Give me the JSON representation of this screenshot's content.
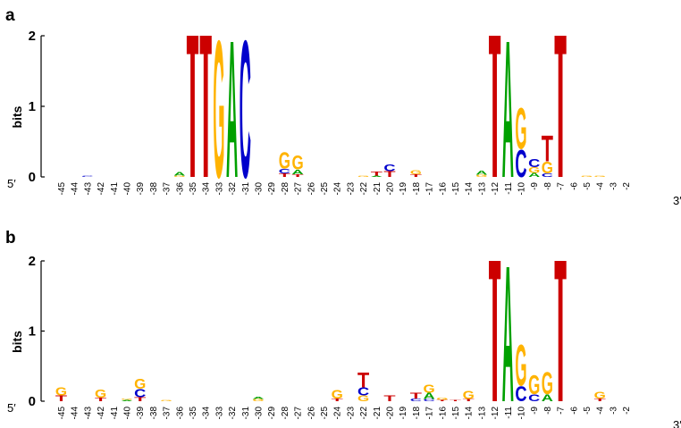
{
  "colors": {
    "A": "#00a000",
    "C": "#0000cc",
    "G": "#ffb300",
    "T": "#cc0000"
  },
  "panels": [
    {
      "letter": "a",
      "y_label": "bits",
      "y_ticks": [
        "0",
        "1",
        "2"
      ],
      "five_prime": "5′",
      "three_prime": "3′",
      "positions": [
        "-45",
        "-44",
        "-43",
        "-42",
        "-41",
        "-40",
        "-39",
        "-38",
        "-37",
        "-36",
        "-35",
        "-34",
        "-33",
        "-32",
        "-31",
        "-30",
        "-29",
        "-28",
        "-27",
        "-26",
        "-25",
        "-24",
        "-23",
        "-22",
        "-21",
        "-20",
        "-19",
        "-18",
        "-17",
        "-16",
        "-15",
        "-14",
        "-13",
        "-12",
        "-11",
        "-10",
        "-9",
        "-8",
        "-7",
        "-6",
        "-5",
        "-4",
        "-3",
        "-2"
      ]
    },
    {
      "letter": "b",
      "y_label": "bits",
      "y_ticks": [
        "0",
        "1",
        "2"
      ],
      "five_prime": "5′",
      "three_prime": "3′",
      "positions": [
        "-45",
        "-44",
        "-43",
        "-42",
        "-41",
        "-40",
        "-39",
        "-38",
        "-37",
        "-36",
        "-35",
        "-34",
        "-33",
        "-32",
        "-31",
        "-30",
        "-29",
        "-28",
        "-27",
        "-26",
        "-25",
        "-24",
        "-23",
        "-22",
        "-21",
        "-20",
        "-19",
        "-18",
        "-17",
        "-16",
        "-15",
        "-14",
        "-13",
        "-12",
        "-11",
        "-10",
        "-9",
        "-8",
        "-7",
        "-6",
        "-5",
        "-4",
        "-3",
        "-2"
      ]
    }
  ],
  "chart_data": [
    {
      "type": "sequence-logo",
      "panel": "a",
      "ylabel": "bits",
      "ylim": [
        0,
        2
      ],
      "columns": [
        {
          "pos": "-43",
          "stack": [
            [
              "C",
              0.02
            ]
          ]
        },
        {
          "pos": "-36",
          "stack": [
            [
              "G",
              0.02
            ],
            [
              "A",
              0.05
            ]
          ]
        },
        {
          "pos": "-35",
          "stack": [
            [
              "T",
              2.0
            ]
          ]
        },
        {
          "pos": "-34",
          "stack": [
            [
              "T",
              2.0
            ]
          ]
        },
        {
          "pos": "-33",
          "stack": [
            [
              "G",
              2.0
            ]
          ]
        },
        {
          "pos": "-32",
          "stack": [
            [
              "A",
              2.0
            ]
          ]
        },
        {
          "pos": "-31",
          "stack": [
            [
              "C",
              2.0
            ]
          ]
        },
        {
          "pos": "-28",
          "stack": [
            [
              "T",
              0.05
            ],
            [
              "C",
              0.07
            ],
            [
              "G",
              0.24
            ]
          ]
        },
        {
          "pos": "-27",
          "stack": [
            [
              "T",
              0.04
            ],
            [
              "A",
              0.07
            ],
            [
              "G",
              0.2
            ]
          ]
        },
        {
          "pos": "-22",
          "stack": [
            [
              "G",
              0.02
            ]
          ]
        },
        {
          "pos": "-21",
          "stack": [
            [
              "A",
              0.02
            ],
            [
              "T",
              0.06
            ]
          ]
        },
        {
          "pos": "-20",
          "stack": [
            [
              "T",
              0.08
            ],
            [
              "C",
              0.1
            ]
          ]
        },
        {
          "pos": "-18",
          "stack": [
            [
              "T",
              0.04
            ],
            [
              "G",
              0.06
            ]
          ]
        },
        {
          "pos": "-13",
          "stack": [
            [
              "G",
              0.03
            ],
            [
              "A",
              0.06
            ]
          ]
        },
        {
          "pos": "-12",
          "stack": [
            [
              "T",
              2.0
            ]
          ]
        },
        {
          "pos": "-11",
          "stack": [
            [
              "A",
              2.0
            ]
          ]
        },
        {
          "pos": "-10",
          "stack": [
            [
              "C",
              0.4
            ],
            [
              "G",
              0.6
            ]
          ]
        },
        {
          "pos": "-9",
          "stack": [
            [
              "A",
              0.06
            ],
            [
              "G",
              0.08
            ],
            [
              "C",
              0.12
            ]
          ]
        },
        {
          "pos": "-8",
          "stack": [
            [
              "C",
              0.05
            ],
            [
              "G",
              0.17
            ],
            [
              "T",
              0.38
            ]
          ]
        },
        {
          "pos": "-7",
          "stack": [
            [
              "T",
              2.0
            ]
          ]
        },
        {
          "pos": "-5",
          "stack": [
            [
              "G",
              0.02
            ]
          ]
        },
        {
          "pos": "-4",
          "stack": [
            [
              "G",
              0.02
            ]
          ]
        }
      ]
    },
    {
      "type": "sequence-logo",
      "panel": "b",
      "ylabel": "bits",
      "ylim": [
        0,
        2
      ],
      "columns": [
        {
          "pos": "-45",
          "stack": [
            [
              "T",
              0.08
            ],
            [
              "G",
              0.12
            ]
          ]
        },
        {
          "pos": "-42",
          "stack": [
            [
              "T",
              0.05
            ],
            [
              "G",
              0.12
            ]
          ]
        },
        {
          "pos": "-40",
          "stack": [
            [
              "A",
              0.02
            ],
            [
              "G",
              0.02
            ]
          ]
        },
        {
          "pos": "-39",
          "stack": [
            [
              "T",
              0.06
            ],
            [
              "C",
              0.12
            ],
            [
              "G",
              0.14
            ]
          ]
        },
        {
          "pos": "-37",
          "stack": [
            [
              "G",
              0.02
            ]
          ]
        },
        {
          "pos": "-30",
          "stack": [
            [
              "G",
              0.03
            ],
            [
              "A",
              0.03
            ]
          ]
        },
        {
          "pos": "-24",
          "stack": [
            [
              "T",
              0.04
            ],
            [
              "G",
              0.13
            ]
          ]
        },
        {
          "pos": "-22",
          "stack": [
            [
              "G",
              0.08
            ],
            [
              "C",
              0.12
            ],
            [
              "T",
              0.22
            ]
          ]
        },
        {
          "pos": "-20",
          "stack": [
            [
              "T",
              0.08
            ]
          ]
        },
        {
          "pos": "-18",
          "stack": [
            [
              "C",
              0.04
            ],
            [
              "T",
              0.08
            ]
          ]
        },
        {
          "pos": "-17",
          "stack": [
            [
              "C",
              0.03
            ],
            [
              "A",
              0.09
            ],
            [
              "G",
              0.12
            ]
          ]
        },
        {
          "pos": "-16",
          "stack": [
            [
              "T",
              0.02
            ],
            [
              "G",
              0.03
            ]
          ]
        },
        {
          "pos": "-15",
          "stack": [
            [
              "T",
              0.02
            ]
          ]
        },
        {
          "pos": "-14",
          "stack": [
            [
              "T",
              0.03
            ],
            [
              "G",
              0.12
            ]
          ]
        },
        {
          "pos": "-12",
          "stack": [
            [
              "T",
              2.0
            ]
          ]
        },
        {
          "pos": "-11",
          "stack": [
            [
              "A",
              2.0
            ]
          ]
        },
        {
          "pos": "-10",
          "stack": [
            [
              "C",
              0.22
            ],
            [
              "G",
              0.6
            ]
          ]
        },
        {
          "pos": "-9",
          "stack": [
            [
              "C",
              0.1
            ],
            [
              "G",
              0.28
            ]
          ]
        },
        {
          "pos": "-8",
          "stack": [
            [
              "A",
              0.1
            ],
            [
              "G",
              0.32
            ]
          ]
        },
        {
          "pos": "-7",
          "stack": [
            [
              "T",
              2.0
            ]
          ]
        },
        {
          "pos": "-4",
          "stack": [
            [
              "T",
              0.04
            ],
            [
              "G",
              0.1
            ]
          ]
        }
      ]
    }
  ]
}
